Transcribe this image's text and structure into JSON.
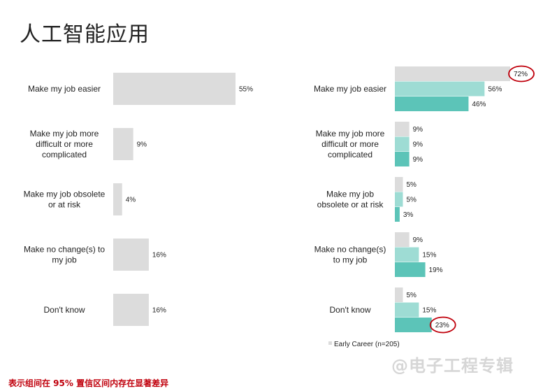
{
  "title": "人工智能应用",
  "footnote": "表示组间在 95% 置信区间内存在显著差异",
  "watermark": "@电子工程专辑",
  "colors": {
    "gray": "#dcdcdc",
    "light_teal": "#9edcd4",
    "teal": "#5cc4b8",
    "highlight_circle": "#c0000c"
  },
  "chart_data": [
    {
      "type": "bar",
      "orientation": "horizontal",
      "categories": [
        "Make my job easier",
        "Make my job more difficult or more complicated",
        "Make my job obsolete or at risk",
        "Make no change(s) to my job",
        "Don't know"
      ],
      "category_lines": [
        [
          "Make my job easier"
        ],
        [
          "Make my job more",
          "difficult or more",
          "complicated"
        ],
        [
          "Make my job obsolete",
          "or at risk"
        ],
        [
          "Make no change(s) to",
          "my job"
        ],
        [
          "Don't know"
        ]
      ],
      "series": [
        {
          "values": [
            55,
            9,
            4,
            16,
            16
          ],
          "labels": [
            "55%",
            "9%",
            "4%",
            "16%",
            "16%"
          ],
          "color": "#dcdcdc"
        }
      ]
    },
    {
      "type": "bar",
      "orientation": "horizontal",
      "categories": [
        "Make my job easier",
        "Make my job more difficult or more complicated",
        "Make my job obsolete or at risk",
        "Make no change(s) to my job",
        "Don't know"
      ],
      "category_lines": [
        [
          "Make my job easier"
        ],
        [
          "Make my job more",
          "difficult or more",
          "complicated"
        ],
        [
          "Make my job",
          "obsolete or at risk"
        ],
        [
          "Make no change(s)",
          "to my job"
        ],
        [
          "Don't know"
        ]
      ],
      "series": [
        {
          "values": [
            72,
            9,
            5,
            9,
            5
          ],
          "labels": [
            "72%",
            "9%",
            "5%",
            "9%",
            "5%"
          ],
          "color": "#dcdcdc"
        },
        {
          "values": [
            56,
            9,
            5,
            15,
            15
          ],
          "labels": [
            "56%",
            "9%",
            "5%",
            "15%",
            "15%"
          ],
          "color": "#9edcd4"
        },
        {
          "name": "Early Career (n=205)",
          "values": [
            46,
            9,
            3,
            19,
            23
          ],
          "labels": [
            "46%",
            "9%",
            "3%",
            "19%",
            "23%"
          ],
          "color": "#5cc4b8"
        }
      ],
      "highlighted": [
        {
          "series": 0,
          "category": 0
        },
        {
          "series": 2,
          "category": 4
        }
      ],
      "legend": {
        "position": "bottom",
        "entries": [
          "Early Career (n=205)"
        ]
      }
    }
  ]
}
